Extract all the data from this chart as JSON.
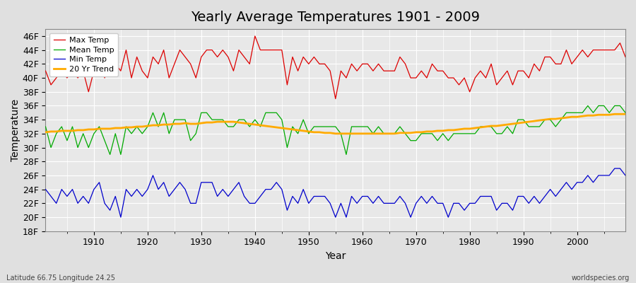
{
  "title": "Yearly Average Temperatures 1901 - 2009",
  "xlabel": "Year",
  "ylabel": "Temperature",
  "subtitle_left": "Latitude 66.75 Longitude 24.25",
  "subtitle_right": "worldspecies.org",
  "ylim": [
    18,
    47
  ],
  "yticks": [
    18,
    20,
    22,
    24,
    26,
    28,
    30,
    32,
    34,
    36,
    38,
    40,
    42,
    44,
    46
  ],
  "ytick_labels": [
    "18F",
    "20F",
    "22F",
    "24F",
    "26F",
    "28F",
    "30F",
    "32F",
    "34F",
    "36F",
    "38F",
    "40F",
    "42F",
    "44F",
    "46F"
  ],
  "xlim": [
    1901,
    2009
  ],
  "xticks": [
    1910,
    1920,
    1930,
    1940,
    1950,
    1960,
    1970,
    1980,
    1990,
    2000
  ],
  "years": [
    1901,
    1902,
    1903,
    1904,
    1905,
    1906,
    1907,
    1908,
    1909,
    1910,
    1911,
    1912,
    1913,
    1914,
    1915,
    1916,
    1917,
    1918,
    1919,
    1920,
    1921,
    1922,
    1923,
    1924,
    1925,
    1926,
    1927,
    1928,
    1929,
    1930,
    1931,
    1932,
    1933,
    1934,
    1935,
    1936,
    1937,
    1938,
    1939,
    1940,
    1941,
    1942,
    1943,
    1944,
    1945,
    1946,
    1947,
    1948,
    1949,
    1950,
    1951,
    1952,
    1953,
    1954,
    1955,
    1956,
    1957,
    1958,
    1959,
    1960,
    1961,
    1962,
    1963,
    1964,
    1965,
    1966,
    1967,
    1968,
    1969,
    1970,
    1971,
    1972,
    1973,
    1974,
    1975,
    1976,
    1977,
    1978,
    1979,
    1980,
    1981,
    1982,
    1983,
    1984,
    1985,
    1986,
    1987,
    1988,
    1989,
    1990,
    1991,
    1992,
    1993,
    1994,
    1995,
    1996,
    1997,
    1998,
    1999,
    2000,
    2001,
    2002,
    2003,
    2004,
    2005,
    2006,
    2007,
    2008,
    2009
  ],
  "max_temp": [
    41,
    39,
    40,
    41,
    40,
    41,
    40,
    41,
    38,
    41,
    44,
    40,
    42,
    42,
    41,
    44,
    40,
    43,
    41,
    40,
    43,
    42,
    44,
    40,
    42,
    44,
    43,
    42,
    40,
    43,
    44,
    44,
    43,
    44,
    43,
    41,
    44,
    43,
    42,
    46,
    44,
    44,
    44,
    44,
    44,
    39,
    43,
    41,
    43,
    42,
    43,
    42,
    42,
    41,
    37,
    41,
    40,
    42,
    41,
    42,
    42,
    41,
    42,
    41,
    41,
    41,
    43,
    42,
    40,
    40,
    41,
    40,
    42,
    41,
    41,
    40,
    40,
    39,
    40,
    38,
    40,
    41,
    40,
    42,
    39,
    40,
    41,
    39,
    41,
    41,
    40,
    42,
    41,
    43,
    43,
    42,
    42,
    44,
    42,
    43,
    44,
    43,
    44,
    44,
    44,
    44,
    44,
    45,
    43
  ],
  "mean_temp": [
    33,
    30,
    32,
    33,
    31,
    33,
    30,
    32,
    30,
    32,
    33,
    31,
    29,
    32,
    29,
    33,
    32,
    33,
    32,
    33,
    35,
    33,
    35,
    32,
    34,
    34,
    34,
    31,
    32,
    35,
    35,
    34,
    34,
    34,
    33,
    33,
    34,
    34,
    33,
    34,
    33,
    35,
    35,
    35,
    34,
    30,
    33,
    32,
    34,
    32,
    33,
    33,
    33,
    33,
    33,
    32,
    29,
    33,
    33,
    33,
    33,
    32,
    33,
    32,
    32,
    32,
    33,
    32,
    31,
    31,
    32,
    32,
    32,
    31,
    32,
    31,
    32,
    32,
    32,
    32,
    32,
    33,
    33,
    33,
    32,
    32,
    33,
    32,
    34,
    34,
    33,
    33,
    33,
    34,
    34,
    33,
    34,
    35,
    35,
    35,
    35,
    36,
    35,
    36,
    36,
    35,
    36,
    36,
    35
  ],
  "min_temp": [
    24,
    23,
    22,
    24,
    23,
    24,
    22,
    23,
    22,
    24,
    25,
    22,
    21,
    23,
    20,
    24,
    23,
    24,
    23,
    24,
    26,
    24,
    25,
    23,
    24,
    25,
    24,
    22,
    22,
    25,
    25,
    25,
    23,
    24,
    23,
    24,
    25,
    23,
    22,
    22,
    23,
    24,
    24,
    25,
    24,
    21,
    23,
    22,
    24,
    22,
    23,
    23,
    23,
    22,
    20,
    22,
    20,
    23,
    22,
    23,
    23,
    22,
    23,
    22,
    22,
    22,
    23,
    22,
    20,
    22,
    23,
    22,
    23,
    22,
    22,
    20,
    22,
    22,
    21,
    22,
    22,
    23,
    23,
    23,
    21,
    22,
    22,
    21,
    23,
    23,
    22,
    23,
    22,
    23,
    24,
    23,
    24,
    25,
    24,
    25,
    25,
    26,
    25,
    26,
    26,
    26,
    27,
    27,
    26
  ],
  "trend": [
    32.2,
    32.3,
    32.3,
    32.4,
    32.4,
    32.4,
    32.5,
    32.5,
    32.6,
    32.6,
    32.7,
    32.7,
    32.7,
    32.8,
    32.8,
    32.9,
    32.9,
    33.0,
    33.0,
    33.1,
    33.2,
    33.2,
    33.3,
    33.3,
    33.4,
    33.4,
    33.5,
    33.4,
    33.4,
    33.5,
    33.6,
    33.6,
    33.7,
    33.7,
    33.7,
    33.7,
    33.6,
    33.5,
    33.4,
    33.3,
    33.2,
    33.1,
    33.0,
    32.9,
    32.8,
    32.7,
    32.6,
    32.5,
    32.4,
    32.3,
    32.2,
    32.2,
    32.1,
    32.1,
    32.0,
    32.0,
    32.0,
    32.0,
    32.0,
    32.0,
    32.0,
    32.0,
    32.0,
    32.0,
    32.0,
    32.0,
    32.1,
    32.1,
    32.1,
    32.2,
    32.2,
    32.3,
    32.3,
    32.4,
    32.4,
    32.5,
    32.5,
    32.6,
    32.7,
    32.7,
    32.8,
    32.9,
    33.0,
    33.1,
    33.1,
    33.2,
    33.3,
    33.4,
    33.5,
    33.6,
    33.7,
    33.8,
    33.9,
    34.0,
    34.1,
    34.1,
    34.2,
    34.3,
    34.4,
    34.4,
    34.5,
    34.6,
    34.6,
    34.7,
    34.7,
    34.7,
    34.8,
    34.8,
    34.8
  ],
  "max_color": "#dd0000",
  "mean_color": "#00aa00",
  "min_color": "#0000cc",
  "trend_color": "#ffaa00",
  "bg_color": "#e0e0e0",
  "plot_bg_color": "#e8e8e8",
  "grid_color": "#ffffff",
  "title_fontsize": 14,
  "axis_fontsize": 9,
  "label_fontsize": 10
}
